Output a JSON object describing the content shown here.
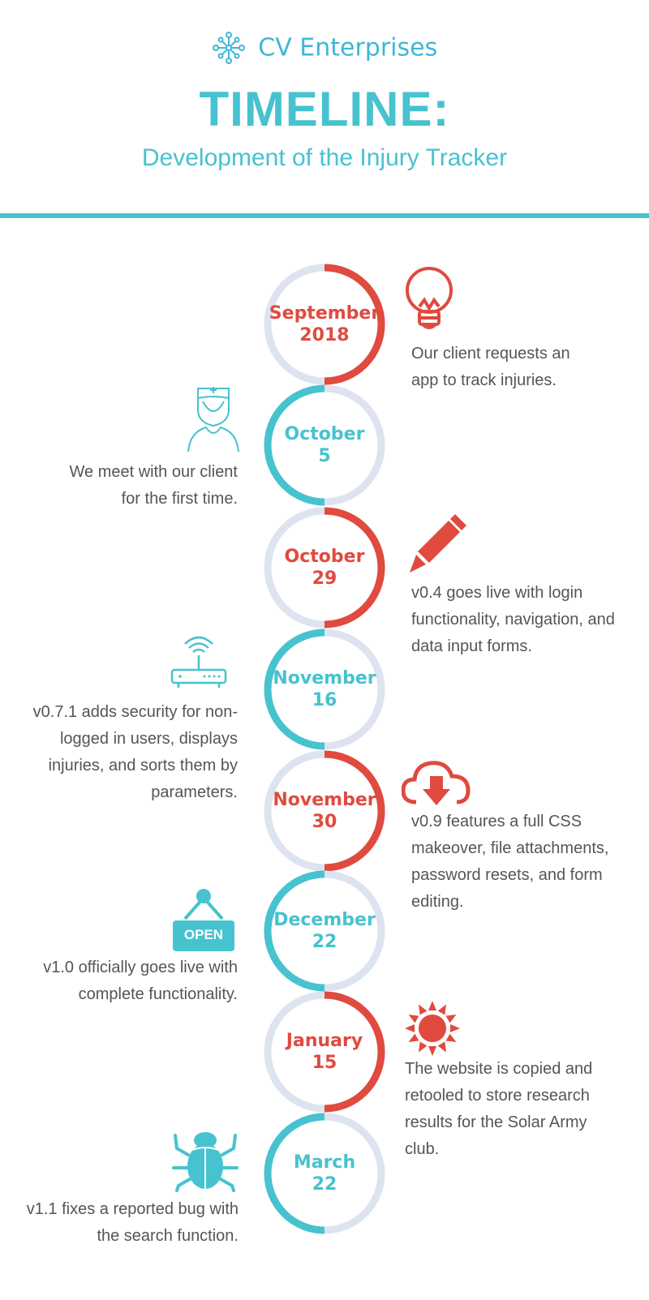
{
  "header": {
    "brand": "CV Enterprises",
    "title": "TIMELINE:",
    "subtitle": "Development of the Injury Tracker"
  },
  "colors": {
    "red": "#e04a3f",
    "teal": "#47c2cf",
    "ring_light": "#dde3ef",
    "text": "#555555"
  },
  "events": [
    {
      "date_line1": "September",
      "date_line2": "2018",
      "color": "red",
      "side": "right",
      "icon": "lightbulb-icon",
      "text": [
        "Our client requests an",
        "app to track injuries."
      ]
    },
    {
      "date_line1": "October",
      "date_line2": "5",
      "color": "teal",
      "side": "left",
      "icon": "nurse-icon",
      "text": [
        "We meet with our client",
        "for the first time."
      ]
    },
    {
      "date_line1": "October",
      "date_line2": "29",
      "color": "red",
      "side": "right",
      "icon": "pencil-icon",
      "text": [
        "v0.4 goes live with login",
        "functionality, navigation, and",
        "data input forms."
      ]
    },
    {
      "date_line1": "November",
      "date_line2": "16",
      "color": "teal",
      "side": "left",
      "icon": "router-icon",
      "text": [
        "v0.7.1 adds security for non-",
        "logged in users, displays",
        "injuries, and sorts them by",
        "parameters."
      ]
    },
    {
      "date_line1": "November",
      "date_line2": "30",
      "color": "red",
      "side": "right",
      "icon": "cloud-download-icon",
      "text": [
        "v0.9 features a full CSS",
        "makeover, file attachments,",
        "password resets, and form",
        "editing."
      ]
    },
    {
      "date_line1": "December",
      "date_line2": "22",
      "color": "teal",
      "side": "left",
      "icon": "open-sign-icon",
      "icon_text": "OPEN",
      "text": [
        "v1.0 officially goes live with",
        "complete functionality."
      ]
    },
    {
      "date_line1": "January",
      "date_line2": "15",
      "color": "red",
      "side": "right",
      "icon": "sun-icon",
      "text": [
        "The website is copied and",
        "retooled to store research",
        "results for the Solar Army",
        "club."
      ]
    },
    {
      "date_line1": "March",
      "date_line2": "22",
      "color": "teal",
      "side": "left",
      "icon": "bug-icon",
      "text": [
        "v1.1 fixes a reported bug with",
        "the search function."
      ]
    }
  ]
}
